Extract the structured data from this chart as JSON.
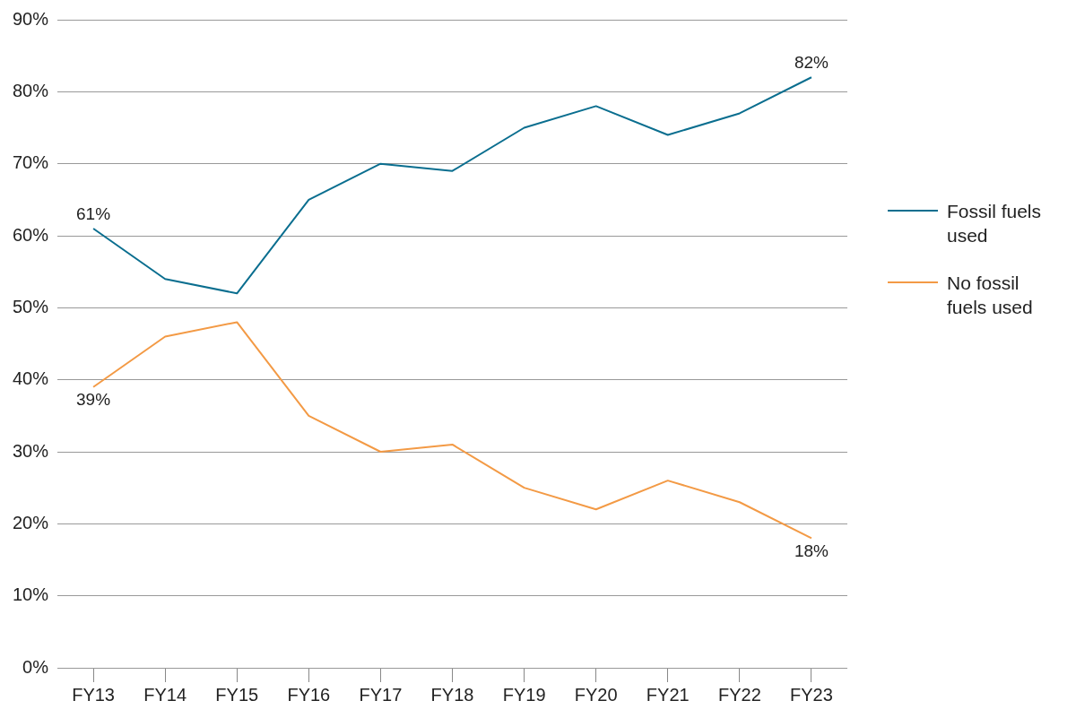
{
  "chart_data": {
    "type": "line",
    "categories": [
      "FY13",
      "FY14",
      "FY15",
      "FY16",
      "FY17",
      "FY18",
      "FY19",
      "FY20",
      "FY21",
      "FY22",
      "FY23"
    ],
    "series": [
      {
        "name": "Fossil fuels used",
        "color": "#0a6e8f",
        "values": [
          61,
          54,
          52,
          65,
          70,
          69,
          75,
          78,
          74,
          77,
          82
        ],
        "value_labels": [
          "61%",
          null,
          null,
          null,
          null,
          null,
          null,
          null,
          null,
          null,
          "82%"
        ]
      },
      {
        "name": "No fossil fuels used",
        "color": "#f39a45",
        "values": [
          39,
          46,
          48,
          35,
          30,
          31,
          25,
          22,
          26,
          23,
          18
        ],
        "value_labels": [
          "39%",
          null,
          null,
          null,
          null,
          null,
          null,
          null,
          null,
          null,
          "18%"
        ]
      }
    ],
    "ylim": [
      0,
      90
    ],
    "yticks": [
      {
        "value": 0,
        "label": "0%"
      },
      {
        "value": 10,
        "label": "10%"
      },
      {
        "value": 20,
        "label": "20%"
      },
      {
        "value": 30,
        "label": "30%"
      },
      {
        "value": 40,
        "label": "40%"
      },
      {
        "value": 50,
        "label": "50%"
      },
      {
        "value": 60,
        "label": "60%"
      },
      {
        "value": 70,
        "label": "70%"
      },
      {
        "value": 80,
        "label": "80%"
      },
      {
        "value": 90,
        "label": "90%"
      }
    ],
    "grid": "y",
    "legend": "right",
    "marker": "none",
    "line_style": "solid"
  }
}
